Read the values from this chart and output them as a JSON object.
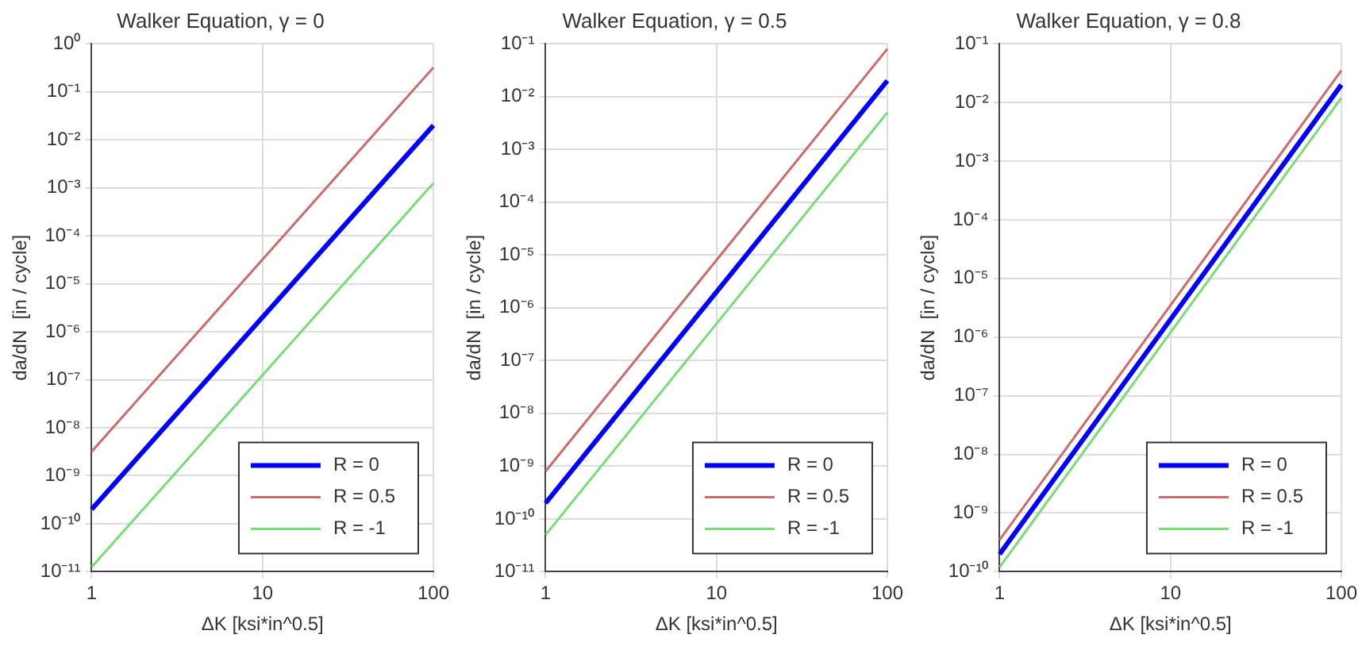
{
  "chart_data": [
    {
      "type": "line",
      "title": "Walker Equation, γ = 0",
      "xlabel": "ΔK [ksi*in^0.5]",
      "ylabel": "da/dN  [in / cycle]",
      "log": "xy",
      "grid": true,
      "legend": "bottom right",
      "marker": "none",
      "line_style": "solid",
      "xlim": [
        1,
        100
      ],
      "xticks": [
        1,
        10,
        100
      ],
      "ylim": [
        1e-11,
        1
      ],
      "yticks": [
        {
          "value": 1e-11,
          "label": "10⁻¹¹"
        },
        {
          "value": 1e-10,
          "label": "10⁻¹⁰"
        },
        {
          "value": 1e-09,
          "label": "10⁻⁹"
        },
        {
          "value": 1e-08,
          "label": "10⁻⁸"
        },
        {
          "value": 1e-07,
          "label": "10⁻⁷"
        },
        {
          "value": 1e-06,
          "label": "10⁻⁶"
        },
        {
          "value": 1e-05,
          "label": "10⁻⁵"
        },
        {
          "value": 0.0001,
          "label": "10⁻⁴"
        },
        {
          "value": 0.001,
          "label": "10⁻³"
        },
        {
          "value": 0.01,
          "label": "10⁻²"
        },
        {
          "value": 0.1,
          "label": "10⁻¹"
        },
        {
          "value": 1,
          "label": "10⁰"
        }
      ],
      "x": [
        1,
        10,
        100
      ],
      "series": [
        {
          "name": "R = 0",
          "color": "#0000ff",
          "values": [
            2e-10,
            2e-06,
            0.02
          ]
        },
        {
          "name": "R = 0.5",
          "color": "#cd6b6b",
          "values": [
            3.2e-09,
            3.2e-05,
            0.32
          ]
        },
        {
          "name": "R = -1",
          "color": "#77dd77",
          "values": [
            1.25e-11,
            1.25e-07,
            0.00125
          ]
        }
      ]
    },
    {
      "type": "line",
      "title": "Walker Equation, γ = 0.5",
      "xlabel": "ΔK [ksi*in^0.5]",
      "ylabel": "da/dN  [in / cycle]",
      "log": "xy",
      "grid": true,
      "legend": "bottom right",
      "marker": "none",
      "line_style": "solid",
      "xlim": [
        1,
        100
      ],
      "xticks": [
        1,
        10,
        100
      ],
      "ylim": [
        1e-11,
        0.1
      ],
      "yticks": [
        {
          "value": 1e-11,
          "label": "10⁻¹¹"
        },
        {
          "value": 1e-10,
          "label": "10⁻¹⁰"
        },
        {
          "value": 1e-09,
          "label": "10⁻⁹"
        },
        {
          "value": 1e-08,
          "label": "10⁻⁸"
        },
        {
          "value": 1e-07,
          "label": "10⁻⁷"
        },
        {
          "value": 1e-06,
          "label": "10⁻⁶"
        },
        {
          "value": 1e-05,
          "label": "10⁻⁵"
        },
        {
          "value": 0.0001,
          "label": "10⁻⁴"
        },
        {
          "value": 0.001,
          "label": "10⁻³"
        },
        {
          "value": 0.01,
          "label": "10⁻²"
        },
        {
          "value": 0.1,
          "label": "10⁻¹"
        }
      ],
      "x": [
        1,
        10,
        100
      ],
      "series": [
        {
          "name": "R = 0",
          "color": "#0000ff",
          "values": [
            2e-10,
            2e-06,
            0.02
          ]
        },
        {
          "name": "R = 0.5",
          "color": "#cd6b6b",
          "values": [
            8e-10,
            8e-06,
            0.08
          ]
        },
        {
          "name": "R = -1",
          "color": "#77dd77",
          "values": [
            5e-11,
            5e-07,
            0.005
          ]
        }
      ]
    },
    {
      "type": "line",
      "title": "Walker Equation, γ = 0.8",
      "xlabel": "ΔK [ksi*in^0.5]",
      "ylabel": "da/dN  [in / cycle]",
      "log": "xy",
      "grid": true,
      "legend": "bottom right",
      "marker": "none",
      "line_style": "solid",
      "xlim": [
        1,
        100
      ],
      "xticks": [
        1,
        10,
        100
      ],
      "ylim": [
        1e-10,
        0.1
      ],
      "yticks": [
        {
          "value": 1e-10,
          "label": "10⁻¹⁰"
        },
        {
          "value": 1e-09,
          "label": "10⁻⁹"
        },
        {
          "value": 1e-08,
          "label": "10⁻⁸"
        },
        {
          "value": 1e-07,
          "label": "10⁻⁷"
        },
        {
          "value": 1e-06,
          "label": "10⁻⁶"
        },
        {
          "value": 1e-05,
          "label": "10⁻⁵"
        },
        {
          "value": 0.0001,
          "label": "10⁻⁴"
        },
        {
          "value": 0.001,
          "label": "10⁻³"
        },
        {
          "value": 0.01,
          "label": "10⁻²"
        },
        {
          "value": 0.1,
          "label": "10⁻¹"
        }
      ],
      "x": [
        1,
        10,
        100
      ],
      "series": [
        {
          "name": "R = 0",
          "color": "#0000ff",
          "values": [
            2e-10,
            2e-06,
            0.02
          ]
        },
        {
          "name": "R = 0.5",
          "color": "#cd6b6b",
          "values": [
            3.5e-10,
            3.5e-06,
            0.035
          ]
        },
        {
          "name": "R = -1",
          "color": "#77dd77",
          "values": [
            1.2e-10,
            1.2e-06,
            0.012
          ]
        }
      ]
    }
  ]
}
